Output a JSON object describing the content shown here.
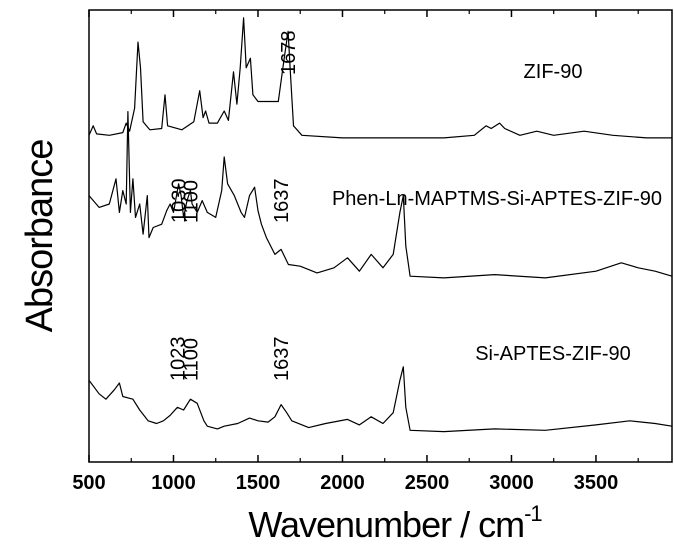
{
  "chart_data": {
    "type": "line",
    "xlabel": "Wavenumber / cm",
    "xlabel_sup": "-1",
    "ylabel": "Absorbance",
    "xlim": [
      500,
      3950
    ],
    "xticks": [
      "500",
      "1000",
      "1500",
      "2000",
      "2500",
      "3000",
      "3500"
    ],
    "yaxis_ticks": "none",
    "grid": false,
    "line_color": "#000000",
    "series": [
      {
        "name": "ZIF-90",
        "points": [
          [
            500,
            0.05
          ],
          [
            525,
            0.12
          ],
          [
            545,
            0.06
          ],
          [
            620,
            0.05
          ],
          [
            700,
            0.07
          ],
          [
            720,
            0.14
          ],
          [
            740,
            0.08
          ],
          [
            770,
            0.25
          ],
          [
            790,
            0.74
          ],
          [
            805,
            0.55
          ],
          [
            820,
            0.15
          ],
          [
            860,
            0.09
          ],
          [
            930,
            0.1
          ],
          [
            950,
            0.35
          ],
          [
            965,
            0.12
          ],
          [
            1050,
            0.09
          ],
          [
            1120,
            0.15
          ],
          [
            1155,
            0.38
          ],
          [
            1175,
            0.18
          ],
          [
            1190,
            0.23
          ],
          [
            1210,
            0.14
          ],
          [
            1260,
            0.14
          ],
          [
            1300,
            0.23
          ],
          [
            1325,
            0.16
          ],
          [
            1355,
            0.52
          ],
          [
            1375,
            0.28
          ],
          [
            1395,
            0.55
          ],
          [
            1415,
            0.92
          ],
          [
            1430,
            0.55
          ],
          [
            1455,
            0.62
          ],
          [
            1470,
            0.35
          ],
          [
            1500,
            0.3
          ],
          [
            1560,
            0.3
          ],
          [
            1620,
            0.3
          ],
          [
            1655,
            0.62
          ],
          [
            1678,
            0.82
          ],
          [
            1690,
            0.55
          ],
          [
            1710,
            0.12
          ],
          [
            1760,
            0.05
          ],
          [
            2000,
            0.03
          ],
          [
            2300,
            0.03
          ],
          [
            2600,
            0.03
          ],
          [
            2780,
            0.05
          ],
          [
            2850,
            0.12
          ],
          [
            2880,
            0.1
          ],
          [
            2930,
            0.14
          ],
          [
            2960,
            0.1
          ],
          [
            3050,
            0.05
          ],
          [
            3150,
            0.08
          ],
          [
            3250,
            0.05
          ],
          [
            3430,
            0.08
          ],
          [
            3600,
            0.05
          ],
          [
            3800,
            0.03
          ],
          [
            3950,
            0.03
          ]
        ]
      },
      {
        "name": "Phen-Ln-MAPTMS-Si-APTES-ZIF-90",
        "points": [
          [
            500,
            0.55
          ],
          [
            560,
            0.48
          ],
          [
            620,
            0.5
          ],
          [
            660,
            0.65
          ],
          [
            680,
            0.45
          ],
          [
            700,
            0.58
          ],
          [
            720,
            0.5
          ],
          [
            730,
            1.05
          ],
          [
            745,
            0.45
          ],
          [
            760,
            0.65
          ],
          [
            775,
            0.42
          ],
          [
            800,
            0.5
          ],
          [
            820,
            0.32
          ],
          [
            845,
            0.55
          ],
          [
            855,
            0.3
          ],
          [
            880,
            0.36
          ],
          [
            930,
            0.38
          ],
          [
            960,
            0.46
          ],
          [
            980,
            0.5
          ],
          [
            1000,
            0.45
          ],
          [
            1030,
            0.62
          ],
          [
            1045,
            0.55
          ],
          [
            1060,
            0.42
          ],
          [
            1080,
            0.52
          ],
          [
            1100,
            0.58
          ],
          [
            1110,
            0.5
          ],
          [
            1140,
            0.45
          ],
          [
            1170,
            0.52
          ],
          [
            1200,
            0.45
          ],
          [
            1250,
            0.42
          ],
          [
            1285,
            0.58
          ],
          [
            1300,
            0.78
          ],
          [
            1320,
            0.62
          ],
          [
            1360,
            0.55
          ],
          [
            1400,
            0.45
          ],
          [
            1420,
            0.42
          ],
          [
            1450,
            0.55
          ],
          [
            1480,
            0.6
          ],
          [
            1500,
            0.46
          ],
          [
            1520,
            0.38
          ],
          [
            1550,
            0.3
          ],
          [
            1600,
            0.2
          ],
          [
            1637,
            0.23
          ],
          [
            1680,
            0.14
          ],
          [
            1750,
            0.13
          ],
          [
            1850,
            0.09
          ],
          [
            1950,
            0.12
          ],
          [
            2030,
            0.18
          ],
          [
            2100,
            0.1
          ],
          [
            2170,
            0.2
          ],
          [
            2240,
            0.12
          ],
          [
            2300,
            0.2
          ],
          [
            2340,
            0.45
          ],
          [
            2360,
            0.55
          ],
          [
            2375,
            0.25
          ],
          [
            2400,
            0.07
          ],
          [
            2600,
            0.06
          ],
          [
            2900,
            0.08
          ],
          [
            3200,
            0.06
          ],
          [
            3500,
            0.1
          ],
          [
            3650,
            0.15
          ],
          [
            3750,
            0.12
          ],
          [
            3850,
            0.1
          ],
          [
            3950,
            0.07
          ]
        ]
      },
      {
        "name": "Si-APTES-ZIF-90",
        "points": [
          [
            500,
            0.42
          ],
          [
            560,
            0.32
          ],
          [
            600,
            0.28
          ],
          [
            650,
            0.35
          ],
          [
            680,
            0.4
          ],
          [
            700,
            0.3
          ],
          [
            760,
            0.28
          ],
          [
            800,
            0.2
          ],
          [
            850,
            0.12
          ],
          [
            900,
            0.1
          ],
          [
            940,
            0.12
          ],
          [
            980,
            0.16
          ],
          [
            1023,
            0.22
          ],
          [
            1060,
            0.2
          ],
          [
            1100,
            0.28
          ],
          [
            1140,
            0.25
          ],
          [
            1180,
            0.12
          ],
          [
            1200,
            0.08
          ],
          [
            1260,
            0.06
          ],
          [
            1300,
            0.08
          ],
          [
            1380,
            0.1
          ],
          [
            1450,
            0.14
          ],
          [
            1500,
            0.12
          ],
          [
            1560,
            0.11
          ],
          [
            1600,
            0.15
          ],
          [
            1637,
            0.24
          ],
          [
            1670,
            0.18
          ],
          [
            1700,
            0.12
          ],
          [
            1800,
            0.07
          ],
          [
            1900,
            0.1
          ],
          [
            2030,
            0.13
          ],
          [
            2100,
            0.09
          ],
          [
            2170,
            0.15
          ],
          [
            2240,
            0.1
          ],
          [
            2300,
            0.18
          ],
          [
            2340,
            0.42
          ],
          [
            2360,
            0.52
          ],
          [
            2375,
            0.22
          ],
          [
            2400,
            0.05
          ],
          [
            2600,
            0.04
          ],
          [
            2900,
            0.06
          ],
          [
            3200,
            0.05
          ],
          [
            3500,
            0.09
          ],
          [
            3700,
            0.12
          ],
          [
            3850,
            0.1
          ],
          [
            3950,
            0.08
          ]
        ]
      }
    ],
    "annotations": [
      {
        "series": "ZIF-90",
        "text": "1678",
        "at_x": 1678
      },
      {
        "series": "Phen-Ln-MAPTMS-Si-APTES-ZIF-90",
        "text": "1030",
        "at_x": 1030
      },
      {
        "series": "Phen-Ln-MAPTMS-Si-APTES-ZIF-90",
        "text": "1100",
        "at_x": 1100
      },
      {
        "series": "Phen-Ln-MAPTMS-Si-APTES-ZIF-90",
        "text": "1637",
        "at_x": 1637
      },
      {
        "series": "Si-APTES-ZIF-90",
        "text": "1023",
        "at_x": 1023
      },
      {
        "series": "Si-APTES-ZIF-90",
        "text": "1100",
        "at_x": 1100
      },
      {
        "series": "Si-APTES-ZIF-90",
        "text": "1637",
        "at_x": 1637
      }
    ]
  }
}
